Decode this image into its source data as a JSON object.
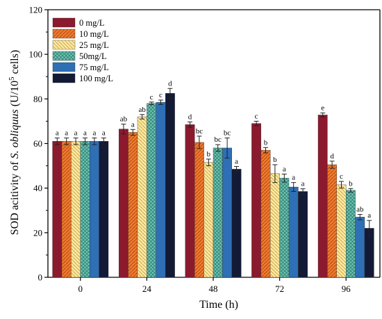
{
  "chart_data": {
    "type": "bar",
    "xlabel": "Time (h)",
    "ylabel": {
      "prefix": "SOD acitivity of ",
      "species": "S. obliquus",
      "suffix_before_sup": " (U/10",
      "sup": "5",
      "suffix_after_sup": " cells)"
    },
    "categories": [
      "0",
      "24",
      "48",
      "72",
      "96"
    ],
    "ylim": [
      0,
      120
    ],
    "yticks": [
      0,
      20,
      40,
      60,
      80,
      100,
      120
    ],
    "grid": false,
    "legend_position": "top-left",
    "series": [
      {
        "name": "0 mg/L",
        "color": "#8b1a2e",
        "pattern": "solid",
        "values": [
          61,
          66.5,
          68.5,
          69,
          72.8
        ],
        "errors": [
          1.5,
          2.2,
          1.2,
          1.0,
          0.9
        ],
        "labels": [
          "a",
          "ab",
          "d",
          "c",
          "e"
        ]
      },
      {
        "name": "10 mg/L",
        "color": "#f07a2e",
        "pattern": "diag-right",
        "values": [
          61,
          65,
          60.5,
          57,
          50.5
        ],
        "errors": [
          1.5,
          1.3,
          2.8,
          1.2,
          1.6
        ],
        "labels": [
          "a",
          "a",
          "bc",
          "b",
          "d"
        ]
      },
      {
        "name": "25 mg/L",
        "color": "#fde9a6",
        "pattern": "diag-left",
        "values": [
          61,
          72,
          51.5,
          46.5,
          41.5
        ],
        "errors": [
          1.5,
          1.0,
          1.5,
          4.0,
          1.5
        ],
        "labels": [
          "a",
          "ab",
          "b",
          "b",
          "c"
        ]
      },
      {
        "name": "50mg/L",
        "color": "#72c4b4",
        "pattern": "cross",
        "values": [
          61,
          78,
          58,
          44.5,
          39
        ],
        "errors": [
          1.5,
          0.6,
          1.5,
          1.8,
          0.8
        ],
        "labels": [
          "a",
          "c",
          "bc",
          "a",
          "b"
        ]
      },
      {
        "name": "75 mg/L",
        "color": "#2e6fb5",
        "pattern": "solid",
        "values": [
          61,
          78.5,
          58,
          40.5,
          27
        ],
        "errors": [
          1.5,
          1.0,
          4.5,
          2.0,
          1.2
        ],
        "labels": [
          "a",
          "c",
          "bc",
          "a",
          "ab"
        ]
      },
      {
        "name": "100 mg/L",
        "color": "#131a36",
        "pattern": "solid",
        "values": [
          61,
          82.5,
          48.5,
          38.5,
          22
        ],
        "errors": [
          1.5,
          2.2,
          1.2,
          1.2,
          3.5
        ],
        "labels": [
          "a",
          "d",
          "a",
          "a",
          "a"
        ]
      }
    ]
  }
}
